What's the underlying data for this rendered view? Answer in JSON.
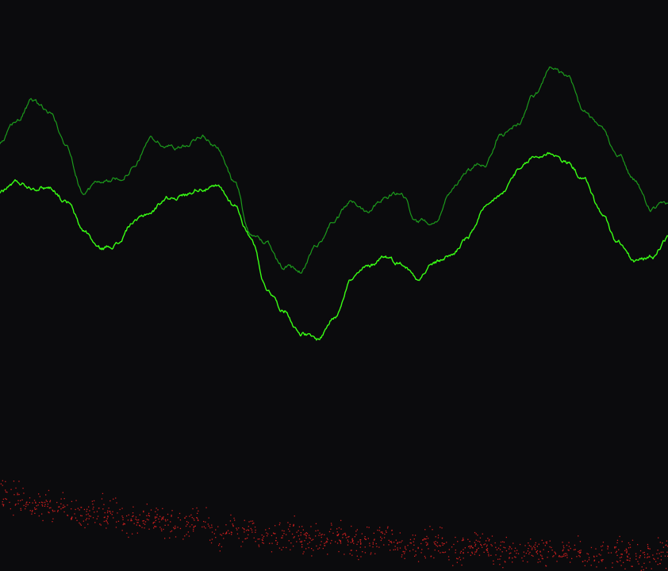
{
  "colors": {
    "background": "#0b0b0d",
    "series_upper": "#1c9a1c",
    "series_lower": "#39ff14",
    "scatter": "#cc1f1f"
  },
  "chart_data": {
    "type": "line",
    "title": "",
    "xlabel": "",
    "ylabel": "",
    "grid": false,
    "legend": "none",
    "xlim": [
      0,
      100
    ],
    "ylim": [
      0,
      100
    ],
    "x": [
      0,
      2.5,
      5,
      7.5,
      10,
      12.5,
      15,
      17.5,
      20,
      22.5,
      25,
      27.5,
      30,
      32.5,
      35,
      37.5,
      40,
      42.5,
      45,
      47.5,
      50,
      52.5,
      55,
      57.5,
      60,
      62.5,
      65,
      67.5,
      70,
      72.5,
      75,
      77.5,
      80,
      82.5,
      85,
      87.5,
      90,
      92.5,
      95,
      97.5,
      100
    ],
    "series": [
      {
        "values": [
          74.8,
          78.8,
          82.3,
          80.3,
          74.3,
          66.3,
          68.3,
          68.6,
          70.5,
          75.8,
          74.3,
          74.3,
          76.3,
          74.3,
          68.3,
          59.1,
          57.4,
          53.3,
          52.3,
          57.3,
          61.3,
          64.5,
          63.3,
          65.5,
          66.1,
          61.2,
          61.3,
          66.3,
          70.3,
          71.3,
          76.3,
          78.3,
          83.3,
          88.3,
          86.3,
          80.3,
          77.3,
          73.3,
          68.3,
          63.3,
          64.3
        ]
      },
      {
        "values": [
          66.4,
          68.1,
          67.3,
          67.2,
          64.6,
          59.6,
          56.4,
          57.3,
          61.1,
          62.8,
          65.4,
          65.8,
          67.1,
          67.1,
          64.3,
          58.6,
          49.4,
          45.7,
          41.7,
          40.5,
          44.3,
          51.1,
          53.1,
          55.2,
          53.9,
          51.5,
          53.9,
          55.3,
          58.3,
          63.2,
          65.8,
          69.9,
          72.4,
          73.3,
          71.4,
          68.5,
          62.8,
          57.5,
          54.2,
          54.9,
          58.4
        ]
      }
    ],
    "scatter_band": {
      "type": "scatter",
      "point_count": 1100,
      "trend_y": [
        [
          0,
          12.9
        ],
        [
          12.5,
          10.4
        ],
        [
          25,
          8.7
        ],
        [
          37.5,
          6.6
        ],
        [
          50,
          5.6
        ],
        [
          62.5,
          4.9
        ],
        [
          75,
          3.8
        ],
        [
          87.5,
          3.2
        ],
        [
          100,
          2.4
        ]
      ],
      "y_spread": 3.8
    }
  }
}
